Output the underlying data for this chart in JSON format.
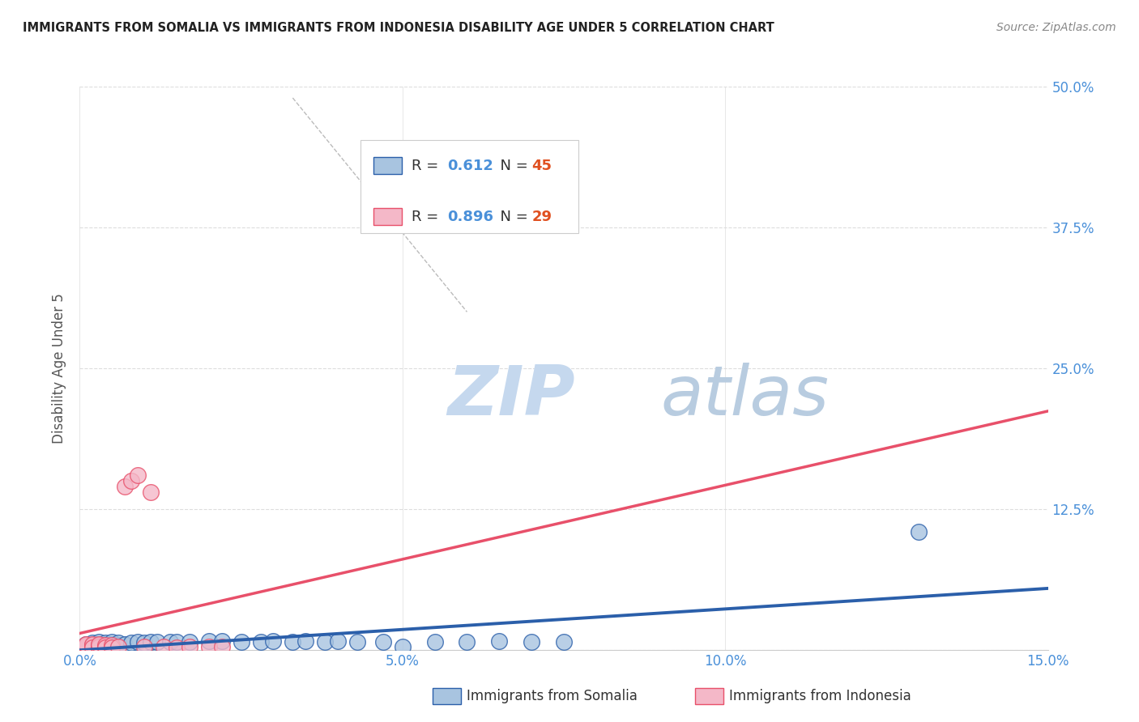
{
  "title": "IMMIGRANTS FROM SOMALIA VS IMMIGRANTS FROM INDONESIA DISABILITY AGE UNDER 5 CORRELATION CHART",
  "source": "Source: ZipAtlas.com",
  "ylabel": "Disability Age Under 5",
  "xlim": [
    0,
    0.15
  ],
  "ylim": [
    0,
    0.5
  ],
  "xticks": [
    0.0,
    0.05,
    0.1,
    0.15
  ],
  "xticklabels": [
    "0.0%",
    "5.0%",
    "10.0%",
    "15.0%"
  ],
  "yticks": [
    0.0,
    0.125,
    0.25,
    0.375,
    0.5
  ],
  "yticklabels": [
    "",
    "12.5%",
    "25.0%",
    "37.5%",
    "50.0%"
  ],
  "somalia_R": "0.612",
  "somalia_N": "45",
  "indonesia_R": "0.896",
  "indonesia_N": "29",
  "somalia_color": "#a8c4e0",
  "indonesia_color": "#f4b8c8",
  "somalia_line_color": "#2b5faa",
  "indonesia_line_color": "#e8506a",
  "background_color": "#ffffff",
  "grid_color": "#dddddd",
  "title_color": "#222222",
  "axis_label_color": "#555555",
  "tick_color": "#4a90d9",
  "legend_R_color": "#4a90d9",
  "legend_N_color": "#e05020",
  "watermark_zip_color": "#d0dff0",
  "watermark_atlas_color": "#b8cce4",
  "somalia_x": [
    0.001,
    0.001,
    0.001,
    0.002,
    0.002,
    0.002,
    0.003,
    0.003,
    0.003,
    0.003,
    0.004,
    0.004,
    0.004,
    0.005,
    0.005,
    0.005,
    0.006,
    0.006,
    0.007,
    0.008,
    0.009,
    0.01,
    0.011,
    0.012,
    0.014,
    0.015,
    0.017,
    0.02,
    0.022,
    0.025,
    0.028,
    0.03,
    0.033,
    0.035,
    0.038,
    0.04,
    0.043,
    0.047,
    0.05,
    0.055,
    0.06,
    0.065,
    0.07,
    0.075,
    0.13
  ],
  "somalia_y": [
    0.002,
    0.003,
    0.005,
    0.002,
    0.004,
    0.006,
    0.003,
    0.004,
    0.005,
    0.007,
    0.003,
    0.004,
    0.006,
    0.003,
    0.005,
    0.007,
    0.004,
    0.006,
    0.005,
    0.006,
    0.007,
    0.006,
    0.007,
    0.007,
    0.007,
    0.007,
    0.007,
    0.008,
    0.008,
    0.007,
    0.007,
    0.008,
    0.007,
    0.008,
    0.007,
    0.008,
    0.007,
    0.007,
    0.003,
    0.007,
    0.007,
    0.008,
    0.007,
    0.007,
    0.105
  ],
  "indonesia_x": [
    0.001,
    0.001,
    0.001,
    0.001,
    0.002,
    0.002,
    0.002,
    0.002,
    0.003,
    0.003,
    0.003,
    0.003,
    0.003,
    0.004,
    0.004,
    0.004,
    0.005,
    0.005,
    0.006,
    0.007,
    0.008,
    0.009,
    0.01,
    0.011,
    0.013,
    0.015,
    0.017,
    0.02,
    0.022
  ],
  "indonesia_y": [
    0.002,
    0.003,
    0.004,
    0.005,
    0.003,
    0.004,
    0.005,
    0.002,
    0.003,
    0.004,
    0.002,
    0.003,
    0.005,
    0.003,
    0.004,
    0.002,
    0.004,
    0.002,
    0.003,
    0.145,
    0.15,
    0.155,
    0.003,
    0.14,
    0.003,
    0.002,
    0.003,
    0.003,
    0.003
  ]
}
